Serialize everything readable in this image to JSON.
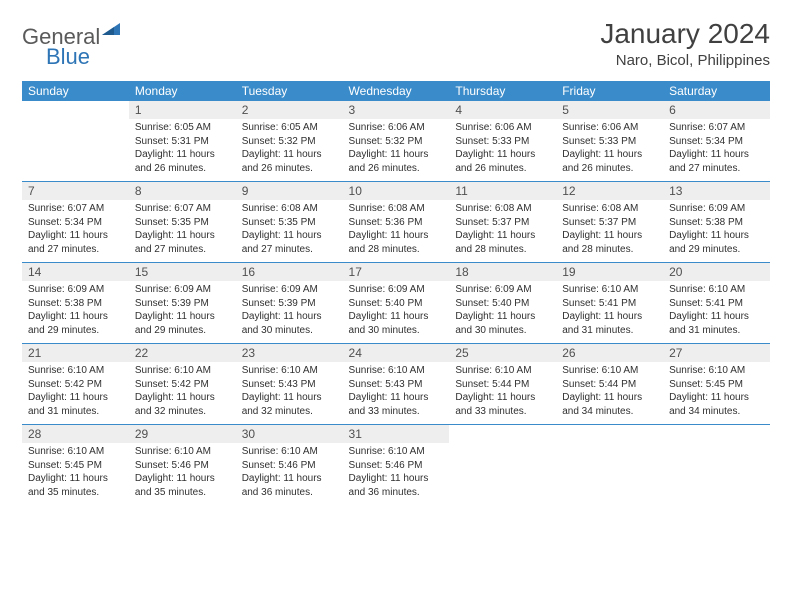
{
  "logo": {
    "text_general": "General",
    "text_blue": "Blue"
  },
  "title": "January 2024",
  "location": "Naro, Bicol, Philippines",
  "colors": {
    "header_bg": "#3a8bc9",
    "header_text": "#ffffff",
    "daynum_bg": "#eeeeee",
    "text": "#303030",
    "logo_gray": "#5a5a5a",
    "logo_blue": "#2e75b6",
    "page_bg": "#ffffff"
  },
  "typography": {
    "title_fontsize": 28,
    "location_fontsize": 15,
    "dow_fontsize": 12,
    "daynum_fontsize": 12,
    "cell_fontsize": 10
  },
  "days_of_week": [
    "Sunday",
    "Monday",
    "Tuesday",
    "Wednesday",
    "Thursday",
    "Friday",
    "Saturday"
  ],
  "weeks": [
    [
      null,
      {
        "n": "1",
        "sr": "Sunrise: 6:05 AM",
        "ss": "Sunset: 5:31 PM",
        "d1": "Daylight: 11 hours",
        "d2": "and 26 minutes."
      },
      {
        "n": "2",
        "sr": "Sunrise: 6:05 AM",
        "ss": "Sunset: 5:32 PM",
        "d1": "Daylight: 11 hours",
        "d2": "and 26 minutes."
      },
      {
        "n": "3",
        "sr": "Sunrise: 6:06 AM",
        "ss": "Sunset: 5:32 PM",
        "d1": "Daylight: 11 hours",
        "d2": "and 26 minutes."
      },
      {
        "n": "4",
        "sr": "Sunrise: 6:06 AM",
        "ss": "Sunset: 5:33 PM",
        "d1": "Daylight: 11 hours",
        "d2": "and 26 minutes."
      },
      {
        "n": "5",
        "sr": "Sunrise: 6:06 AM",
        "ss": "Sunset: 5:33 PM",
        "d1": "Daylight: 11 hours",
        "d2": "and 26 minutes."
      },
      {
        "n": "6",
        "sr": "Sunrise: 6:07 AM",
        "ss": "Sunset: 5:34 PM",
        "d1": "Daylight: 11 hours",
        "d2": "and 27 minutes."
      }
    ],
    [
      {
        "n": "7",
        "sr": "Sunrise: 6:07 AM",
        "ss": "Sunset: 5:34 PM",
        "d1": "Daylight: 11 hours",
        "d2": "and 27 minutes."
      },
      {
        "n": "8",
        "sr": "Sunrise: 6:07 AM",
        "ss": "Sunset: 5:35 PM",
        "d1": "Daylight: 11 hours",
        "d2": "and 27 minutes."
      },
      {
        "n": "9",
        "sr": "Sunrise: 6:08 AM",
        "ss": "Sunset: 5:35 PM",
        "d1": "Daylight: 11 hours",
        "d2": "and 27 minutes."
      },
      {
        "n": "10",
        "sr": "Sunrise: 6:08 AM",
        "ss": "Sunset: 5:36 PM",
        "d1": "Daylight: 11 hours",
        "d2": "and 28 minutes."
      },
      {
        "n": "11",
        "sr": "Sunrise: 6:08 AM",
        "ss": "Sunset: 5:37 PM",
        "d1": "Daylight: 11 hours",
        "d2": "and 28 minutes."
      },
      {
        "n": "12",
        "sr": "Sunrise: 6:08 AM",
        "ss": "Sunset: 5:37 PM",
        "d1": "Daylight: 11 hours",
        "d2": "and 28 minutes."
      },
      {
        "n": "13",
        "sr": "Sunrise: 6:09 AM",
        "ss": "Sunset: 5:38 PM",
        "d1": "Daylight: 11 hours",
        "d2": "and 29 minutes."
      }
    ],
    [
      {
        "n": "14",
        "sr": "Sunrise: 6:09 AM",
        "ss": "Sunset: 5:38 PM",
        "d1": "Daylight: 11 hours",
        "d2": "and 29 minutes."
      },
      {
        "n": "15",
        "sr": "Sunrise: 6:09 AM",
        "ss": "Sunset: 5:39 PM",
        "d1": "Daylight: 11 hours",
        "d2": "and 29 minutes."
      },
      {
        "n": "16",
        "sr": "Sunrise: 6:09 AM",
        "ss": "Sunset: 5:39 PM",
        "d1": "Daylight: 11 hours",
        "d2": "and 30 minutes."
      },
      {
        "n": "17",
        "sr": "Sunrise: 6:09 AM",
        "ss": "Sunset: 5:40 PM",
        "d1": "Daylight: 11 hours",
        "d2": "and 30 minutes."
      },
      {
        "n": "18",
        "sr": "Sunrise: 6:09 AM",
        "ss": "Sunset: 5:40 PM",
        "d1": "Daylight: 11 hours",
        "d2": "and 30 minutes."
      },
      {
        "n": "19",
        "sr": "Sunrise: 6:10 AM",
        "ss": "Sunset: 5:41 PM",
        "d1": "Daylight: 11 hours",
        "d2": "and 31 minutes."
      },
      {
        "n": "20",
        "sr": "Sunrise: 6:10 AM",
        "ss": "Sunset: 5:41 PM",
        "d1": "Daylight: 11 hours",
        "d2": "and 31 minutes."
      }
    ],
    [
      {
        "n": "21",
        "sr": "Sunrise: 6:10 AM",
        "ss": "Sunset: 5:42 PM",
        "d1": "Daylight: 11 hours",
        "d2": "and 31 minutes."
      },
      {
        "n": "22",
        "sr": "Sunrise: 6:10 AM",
        "ss": "Sunset: 5:42 PM",
        "d1": "Daylight: 11 hours",
        "d2": "and 32 minutes."
      },
      {
        "n": "23",
        "sr": "Sunrise: 6:10 AM",
        "ss": "Sunset: 5:43 PM",
        "d1": "Daylight: 11 hours",
        "d2": "and 32 minutes."
      },
      {
        "n": "24",
        "sr": "Sunrise: 6:10 AM",
        "ss": "Sunset: 5:43 PM",
        "d1": "Daylight: 11 hours",
        "d2": "and 33 minutes."
      },
      {
        "n": "25",
        "sr": "Sunrise: 6:10 AM",
        "ss": "Sunset: 5:44 PM",
        "d1": "Daylight: 11 hours",
        "d2": "and 33 minutes."
      },
      {
        "n": "26",
        "sr": "Sunrise: 6:10 AM",
        "ss": "Sunset: 5:44 PM",
        "d1": "Daylight: 11 hours",
        "d2": "and 34 minutes."
      },
      {
        "n": "27",
        "sr": "Sunrise: 6:10 AM",
        "ss": "Sunset: 5:45 PM",
        "d1": "Daylight: 11 hours",
        "d2": "and 34 minutes."
      }
    ],
    [
      {
        "n": "28",
        "sr": "Sunrise: 6:10 AM",
        "ss": "Sunset: 5:45 PM",
        "d1": "Daylight: 11 hours",
        "d2": "and 35 minutes."
      },
      {
        "n": "29",
        "sr": "Sunrise: 6:10 AM",
        "ss": "Sunset: 5:46 PM",
        "d1": "Daylight: 11 hours",
        "d2": "and 35 minutes."
      },
      {
        "n": "30",
        "sr": "Sunrise: 6:10 AM",
        "ss": "Sunset: 5:46 PM",
        "d1": "Daylight: 11 hours",
        "d2": "and 36 minutes."
      },
      {
        "n": "31",
        "sr": "Sunrise: 6:10 AM",
        "ss": "Sunset: 5:46 PM",
        "d1": "Daylight: 11 hours",
        "d2": "and 36 minutes."
      },
      null,
      null,
      null
    ]
  ]
}
